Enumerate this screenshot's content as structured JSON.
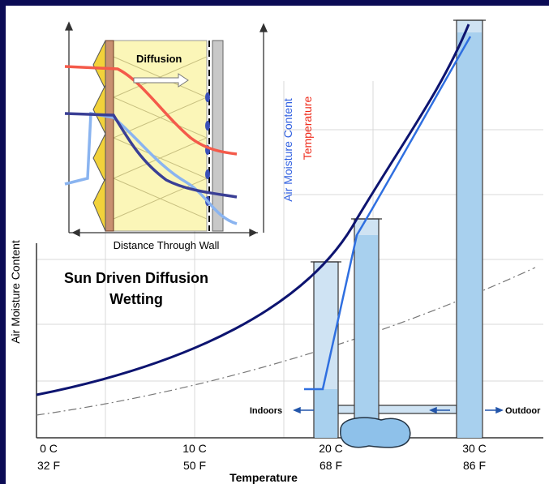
{
  "inset": {
    "arrow_label": "Diffusion",
    "x_axis_label": "Distance Through Wall",
    "legend_moisture": "Air Moisture Content",
    "legend_temperature": "Temperature"
  },
  "main": {
    "title_line1": "Sun Driven Diffusion",
    "title_line2": "Wetting",
    "y_axis_label": "Air Moisture Content",
    "x_axis_label": "Temperature",
    "x_ticks": [
      [
        "0 C",
        "32 F"
      ],
      [
        "10 C",
        "50 F"
      ],
      [
        "20 C",
        "68 F"
      ],
      [
        "30 C",
        "86 F"
      ]
    ],
    "indoors": "Indoors",
    "outdoors": "Outdoor"
  }
}
